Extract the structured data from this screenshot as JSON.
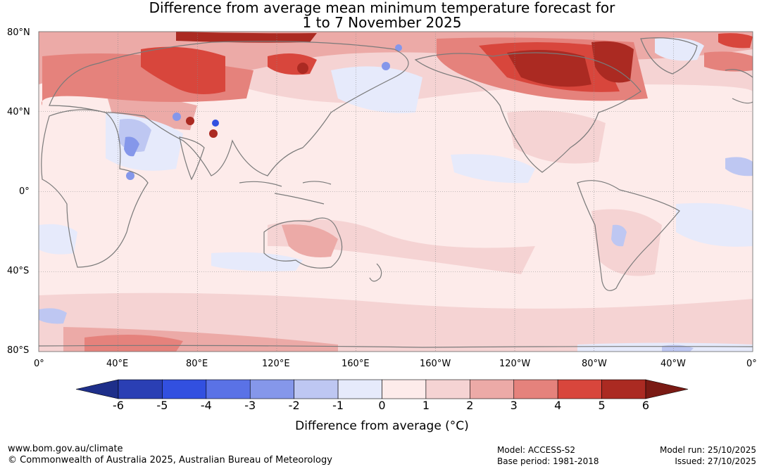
{
  "title": {
    "line1": "Difference from average mean minimum temperature forecast for",
    "line2": "1 to 7 November 2025"
  },
  "map": {
    "lat_labels": [
      "80°N",
      "40°N",
      "0°",
      "40°S",
      "80°S"
    ],
    "lon_labels": [
      "0°",
      "40°E",
      "80°E",
      "120°E",
      "160°E",
      "160°W",
      "120°W",
      "80°W",
      "40°W",
      "0°"
    ],
    "ocean_base_color": "#fdebea",
    "coast_color": "#7a7a7a",
    "anomaly_regions": [
      {
        "region": "Arctic Siberia",
        "anomaly": 5
      },
      {
        "region": "Northern Canada / Greenland",
        "anomaly": 6
      },
      {
        "region": "Europe / western Russia",
        "anomaly": 4
      },
      {
        "region": "Northern Pacific",
        "anomaly": -1
      },
      {
        "region": "Central Africa",
        "anomaly": -3
      },
      {
        "region": "Southern Ocean",
        "anomaly": 3
      },
      {
        "region": "Antarctic coast (West)",
        "anomaly": -2
      }
    ]
  },
  "colorbar": {
    "ticks": [
      "-6",
      "-5",
      "-4",
      "-3",
      "-2",
      "-1",
      "0",
      "1",
      "2",
      "3",
      "4",
      "5",
      "6"
    ],
    "colors": [
      "#1e2f8a",
      "#2a3fb4",
      "#3250e0",
      "#5a72e6",
      "#8597ea",
      "#bec7f2",
      "#e6eafb",
      "#fdebea",
      "#f5d3d3",
      "#ecaaa7",
      "#e5827c",
      "#d8463c",
      "#ab2a22",
      "#7a1a14"
    ],
    "label": "Difference from average (°C)"
  },
  "footer": {
    "url": "www.bom.gov.au/climate",
    "copyright": "© Commonwealth of Australia 2025, Australian Bureau of Meteorology",
    "model": "Model: ACCESS-S2",
    "base_period": "Base period: 1981-2018",
    "model_run": "Model run: 25/10/2025",
    "issued": "Issued: 27/10/2025"
  }
}
